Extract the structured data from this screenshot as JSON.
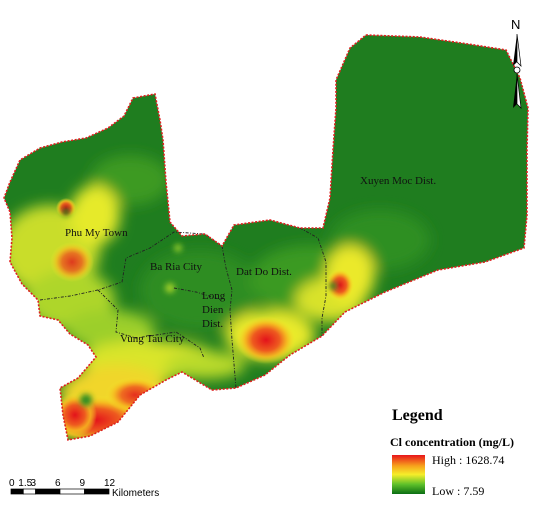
{
  "districts": [
    {
      "id": "phu-my",
      "label": "Phu My Town"
    },
    {
      "id": "ba-ria",
      "label": "Ba Ria City"
    },
    {
      "id": "long-dien-1",
      "label": "Long"
    },
    {
      "id": "long-dien-2",
      "label": "Dien"
    },
    {
      "id": "long-dien-3",
      "label": "Dist."
    },
    {
      "id": "dat-do",
      "label": "Dat Do Dist."
    },
    {
      "id": "vung-tau",
      "label": "Vung Tau City"
    },
    {
      "id": "xuyen-moc",
      "label": "Xuyen Moc Dist."
    }
  ],
  "north_arrow": {
    "label": "N",
    "icon": "north-arrow-icon"
  },
  "legend": {
    "title": "Legend",
    "subtitle": "Cl concentration (mg/L)",
    "high": "High : 1628.74",
    "low": "Low : 7.59",
    "ramp_colors": [
      "#e8141b",
      "#f7a21c",
      "#f6ee2a",
      "#5fc12a",
      "#0b6e14"
    ]
  },
  "scale_bar": {
    "ticks": [
      "0",
      "1.5",
      "3",
      "6",
      "9",
      "12"
    ],
    "unit": "Kilometers"
  },
  "colors": {
    "boundary": "#e01f1f",
    "dark_green": "#1d7a1f",
    "yellow": "#e9ee2a",
    "red": "#e8141b"
  }
}
